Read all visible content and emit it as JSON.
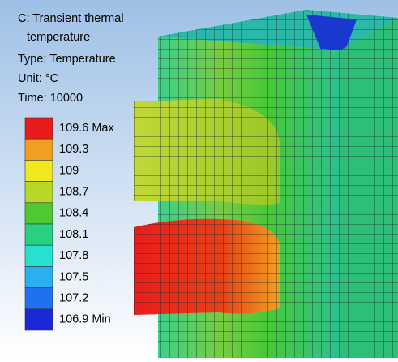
{
  "header": {
    "title_lines": [
      "C: Transient thermal",
      "temperature"
    ],
    "type": "Type: Temperature",
    "unit": "Unit: °C",
    "time": "Time: 10000"
  },
  "legend": [
    {
      "label": "109.6 Max",
      "color": "#e81c1c"
    },
    {
      "label": "109.3",
      "color": "#f0a020"
    },
    {
      "label": "109",
      "color": "#f0e820"
    },
    {
      "label": "108.7",
      "color": "#b8d828"
    },
    {
      "label": "108.4",
      "color": "#50c830"
    },
    {
      "label": "108.1",
      "color": "#28d080"
    },
    {
      "label": "107.8",
      "color": "#28e0d0"
    },
    {
      "label": "107.5",
      "color": "#28b0f0"
    },
    {
      "label": "107.2",
      "color": "#2070f0"
    },
    {
      "label": "106.9 Min",
      "color": "#1a28d8"
    }
  ]
}
